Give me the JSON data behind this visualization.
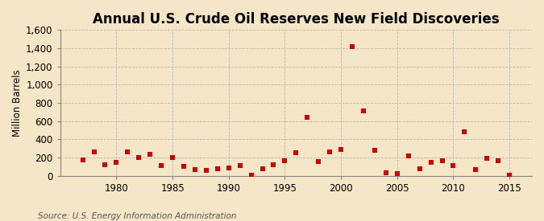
{
  "title": "Annual U.S. Crude Oil Reserves New Field Discoveries",
  "ylabel": "Million Barrels",
  "source_text": "Source: U.S. Energy Information Administration",
  "background_color": "#f5e6c8",
  "plot_background_color": "#f5e6c8",
  "marker_color": "#cc0000",
  "years": [
    1977,
    1978,
    1979,
    1980,
    1981,
    1982,
    1983,
    1984,
    1985,
    1986,
    1987,
    1988,
    1989,
    1990,
    1991,
    1992,
    1993,
    1994,
    1995,
    1996,
    1997,
    1998,
    1999,
    2000,
    2001,
    2002,
    2003,
    2004,
    2005,
    2006,
    2007,
    2008,
    2009,
    2010,
    2011,
    2012,
    2013,
    2014,
    2015
  ],
  "values": [
    175,
    260,
    120,
    145,
    260,
    200,
    235,
    110,
    200,
    100,
    70,
    55,
    80,
    90,
    110,
    10,
    80,
    120,
    165,
    250,
    640,
    160,
    265,
    290,
    1420,
    710,
    280,
    35,
    20,
    215,
    80,
    145,
    165,
    115,
    480,
    70,
    195,
    165,
    10
  ],
  "xlim": [
    1975,
    2017
  ],
  "ylim": [
    0,
    1600
  ],
  "yticks": [
    0,
    200,
    400,
    600,
    800,
    1000,
    1200,
    1400,
    1600
  ],
  "ytick_labels": [
    "0",
    "200",
    "400",
    "600",
    "800",
    "1,000",
    "1,200",
    "1,400",
    "1,600"
  ],
  "xticks": [
    1980,
    1985,
    1990,
    1995,
    2000,
    2005,
    2010,
    2015
  ],
  "grid_color": "#aaaaaa",
  "title_fontsize": 12,
  "label_fontsize": 8.5,
  "source_fontsize": 7.5
}
